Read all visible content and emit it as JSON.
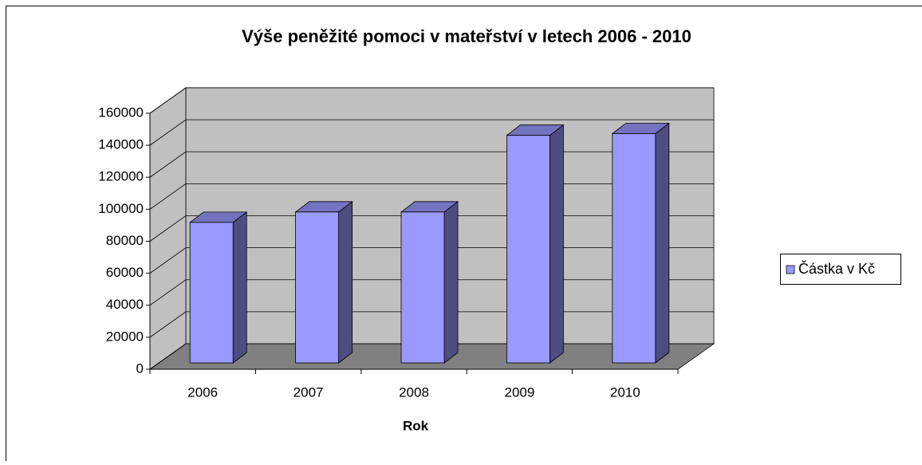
{
  "chart_data": {
    "type": "bar3d",
    "title": "Výše peněžité pomoci v mateřství v letech 2006 - 2010",
    "x_label": "Rok",
    "categories": [
      "2006",
      "2007",
      "2008",
      "2009",
      "2010"
    ],
    "series": [
      {
        "name": "Částka v Kč",
        "color": "#9999ff",
        "values": [
          87800,
          94300,
          94300,
          142200,
          143300
        ]
      }
    ],
    "ylim": [
      0,
      160000
    ],
    "yticks": [
      0,
      20000,
      40000,
      60000,
      80000,
      100000,
      120000,
      140000,
      160000
    ],
    "grid": true,
    "legend": "right"
  }
}
